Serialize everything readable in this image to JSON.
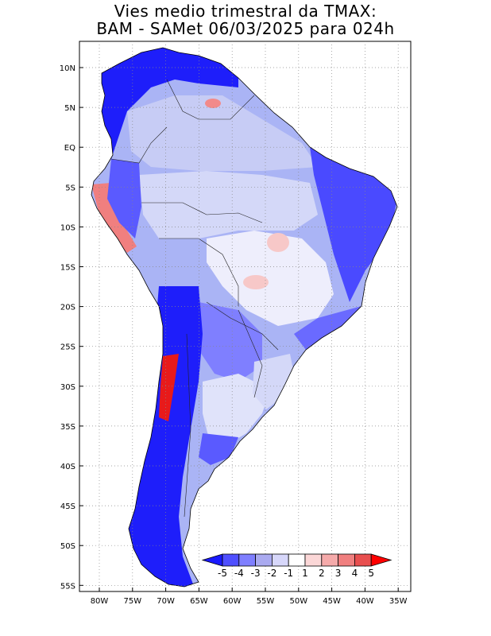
{
  "map": {
    "title_line1": "Vies medio trimestral da TMAX:",
    "title_line2": "BAM - SAMet 06/03/2025  para 024h",
    "lat_labels": [
      "10N",
      "5N",
      "EQ",
      "5S",
      "10S",
      "15S",
      "20S",
      "25S",
      "30S",
      "35S",
      "40S",
      "45S",
      "50S",
      "55S"
    ],
    "lon_labels": [
      "80W",
      "75W",
      "70W",
      "65W",
      "60W",
      "55W",
      "50W",
      "45W",
      "40W",
      "35W"
    ],
    "region": "South America",
    "variable": "TMAX bias"
  },
  "colorbar": {
    "labels": [
      "-5",
      "-4",
      "-3",
      "-2",
      "-1",
      "1",
      "2",
      "3",
      "4",
      "5"
    ],
    "colors": [
      "#1a1aff",
      "#4f4fff",
      "#7f7fff",
      "#aaaaf0",
      "#d7d7fa",
      "#ffffff",
      "#fbd7d7",
      "#f5aaaa",
      "#f07f7f",
      "#e84f4f",
      "#ff0000"
    ]
  },
  "palette": {
    "deep_blue": "#1e1efa",
    "mid_blue": "#5a5aff",
    "light_blue": "#aab4f5",
    "pale_blue": "#d4d8f8",
    "pale_red": "#f7c8c8",
    "red": "#e81a1a"
  }
}
